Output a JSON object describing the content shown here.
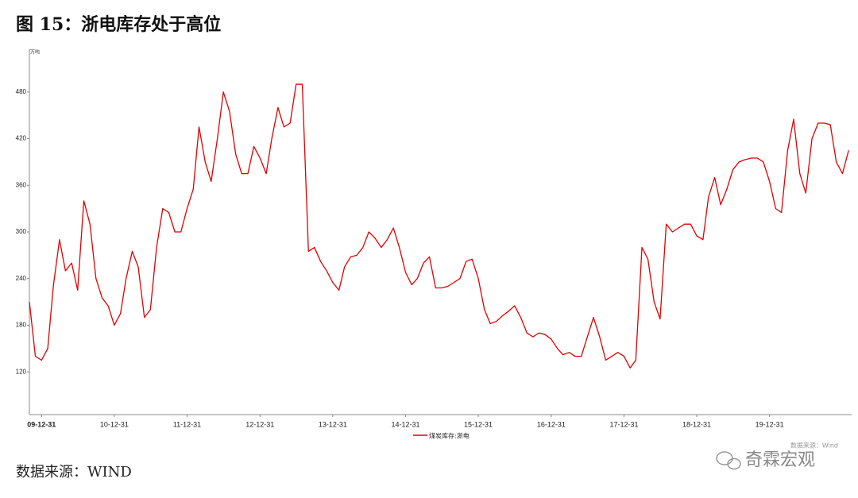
{
  "chart_data": {
    "type": "line",
    "title": "图 15：浙电库存处于高位",
    "y_unit": "万吨",
    "source_note": "数据来源：Wind",
    "caption": "数据来源：WIND",
    "watermark": "奇霖宏观",
    "x": [
      "09-10-31",
      "09-11-30",
      "09-12-31",
      "10-01-31",
      "10-02-28",
      "10-03-31",
      "10-04-30",
      "10-05-31",
      "10-06-30",
      "10-07-31",
      "10-08-31",
      "10-09-30",
      "10-10-31",
      "10-11-30",
      "10-12-31",
      "11-01-31",
      "11-02-28",
      "11-03-31",
      "11-04-30",
      "11-05-31",
      "11-06-30",
      "11-07-31",
      "11-08-31",
      "11-09-30",
      "11-10-31",
      "11-11-30",
      "11-12-31",
      "12-01-31",
      "12-02-29",
      "12-03-31",
      "12-04-30",
      "12-05-31",
      "12-06-30",
      "12-07-31",
      "12-08-31",
      "12-09-30",
      "12-10-31",
      "12-11-30",
      "12-12-31",
      "13-01-31",
      "13-02-28",
      "13-03-31",
      "13-04-30",
      "13-05-31",
      "13-06-30",
      "13-07-31",
      "13-08-31",
      "13-09-30",
      "13-10-31",
      "13-11-30",
      "13-12-31",
      "14-01-31",
      "14-02-28",
      "14-03-31",
      "14-04-30",
      "14-05-31",
      "14-06-30",
      "14-07-31",
      "14-08-31",
      "14-09-30",
      "14-10-31",
      "14-11-30",
      "14-12-31",
      "15-01-31",
      "15-02-28",
      "15-03-31",
      "15-04-30",
      "15-05-31",
      "15-06-30",
      "15-07-31",
      "15-08-31",
      "15-09-30",
      "15-10-31",
      "15-11-30",
      "15-12-31",
      "16-01-31",
      "16-02-29",
      "16-03-31",
      "16-04-30",
      "16-05-31",
      "16-06-30",
      "16-07-31",
      "16-08-31",
      "16-09-30",
      "16-10-31",
      "16-11-30",
      "16-12-31",
      "17-01-31",
      "17-02-28",
      "17-03-31",
      "17-04-30",
      "17-05-31",
      "17-06-30",
      "17-07-31",
      "17-08-31",
      "17-09-30",
      "17-10-31",
      "17-11-30",
      "17-12-31",
      "18-01-31",
      "18-02-28",
      "18-03-31",
      "18-04-30",
      "18-05-31",
      "18-06-30",
      "18-07-31",
      "18-08-31",
      "18-09-30",
      "18-10-31",
      "18-11-30",
      "18-12-31",
      "19-01-31",
      "19-02-28",
      "19-03-31",
      "19-04-30",
      "19-05-31",
      "19-06-30",
      "19-07-31",
      "19-08-31",
      "19-09-30",
      "19-10-31",
      "19-11-30",
      "19-12-31",
      "20-01-31",
      "20-02-29",
      "20-03-31",
      "20-04-30",
      "20-05-31",
      "20-06-30",
      "20-07-31",
      "20-08-31",
      "20-09-30",
      "20-10-31",
      "20-11-30",
      "20-12-31",
      "21-01-31"
    ],
    "series": [
      {
        "name": "煤炭库存:浙电",
        "color": "#e00000",
        "values": [
          210,
          140,
          135,
          150,
          230,
          290,
          250,
          260,
          225,
          340,
          310,
          240,
          215,
          205,
          180,
          195,
          240,
          275,
          255,
          190,
          200,
          280,
          330,
          325,
          300,
          300,
          330,
          355,
          435,
          390,
          365,
          420,
          480,
          455,
          400,
          375,
          375,
          410,
          395,
          375,
          420,
          460,
          435,
          440,
          490,
          490,
          275,
          280,
          262,
          250,
          235,
          225,
          255,
          268,
          270,
          280,
          300,
          292,
          280,
          290,
          305,
          280,
          248,
          232,
          240,
          260,
          268,
          228,
          228,
          230,
          235,
          240,
          262,
          265,
          240,
          200,
          182,
          185,
          192,
          198,
          205,
          190,
          170,
          165,
          170,
          168,
          162,
          150,
          142,
          145,
          140,
          140,
          165,
          190,
          165,
          135,
          140,
          145,
          140,
          125,
          135,
          280,
          265,
          210,
          188,
          310,
          300,
          305,
          310,
          310,
          295,
          290,
          345,
          370,
          335,
          355,
          380,
          390,
          393,
          395,
          395,
          390,
          365,
          330,
          325,
          405,
          445,
          375,
          350,
          420,
          440,
          440,
          438,
          390,
          375,
          405
        ]
      }
    ],
    "xlim": [
      "09-10-31",
      "21-02-15"
    ],
    "xticks": [
      "09-12-31",
      "10-12-31",
      "11-12-31",
      "12-12-31",
      "13-12-31",
      "14-12-31",
      "15-12-31",
      "16-12-31",
      "17-12-31",
      "18-12-31",
      "19-12-31"
    ],
    "ylim": [
      65,
      535
    ],
    "yticks": [
      120,
      180,
      240,
      300,
      360,
      420,
      480
    ],
    "grid": false
  }
}
